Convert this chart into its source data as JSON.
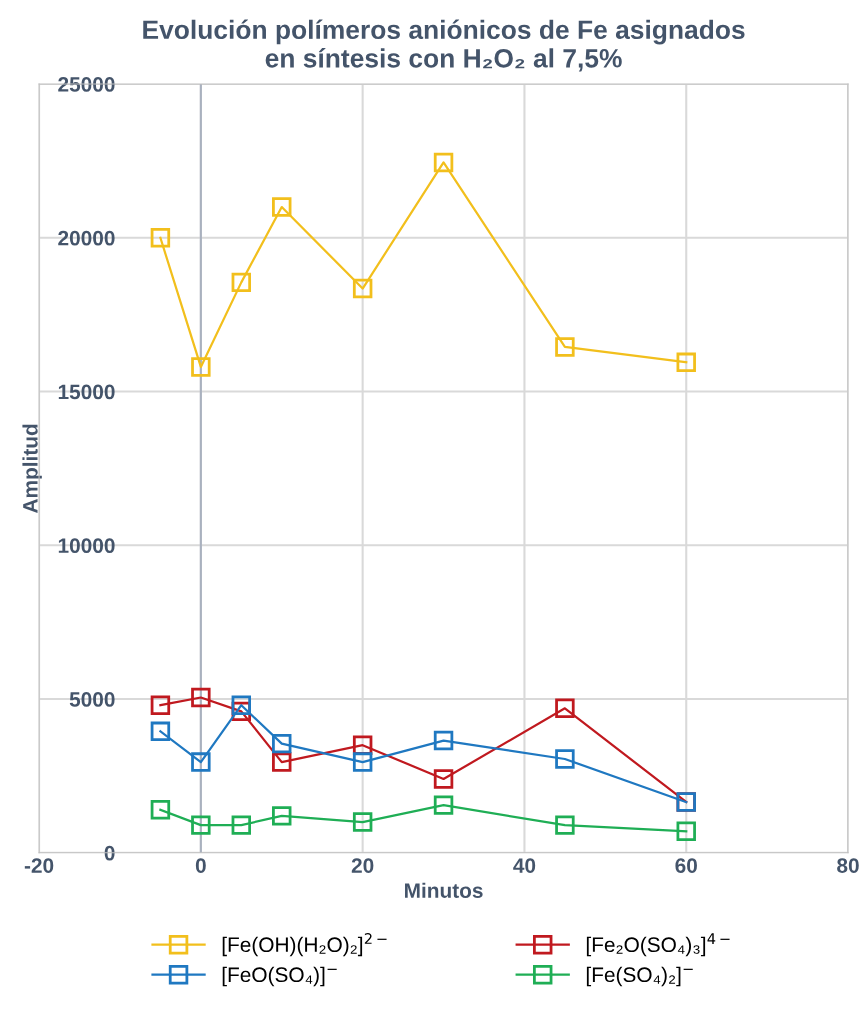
{
  "chart_data": {
    "type": "line",
    "title": "Evolución polímeros aniónicos de Fe asignados\nen síntesis con H₂O₂ al 7,5%",
    "xlabel": "Minutos",
    "ylabel": "Amplitud",
    "x": [
      -5,
      0,
      5,
      10,
      20,
      30,
      45,
      60
    ],
    "series": [
      {
        "name": "[Fe(OH)(H₂O)₂]$^{2−}$",
        "color": "#f2bf1c",
        "values": [
          20000,
          15800,
          18550,
          21000,
          18350,
          22450,
          16450,
          15950
        ]
      },
      {
        "name": "[FeO(SO₄)]$^{−}$",
        "color": "#1f78c1",
        "values": [
          3950,
          2950,
          4800,
          3550,
          2950,
          3650,
          3050,
          1650
        ]
      },
      {
        "name": "[Fe₂O(SO₄)₃]$^{4−}$",
        "color": "#c0191f",
        "values": [
          4800,
          5050,
          4600,
          2950,
          3500,
          2400,
          4700,
          1650
        ]
      },
      {
        "name": "[Fe(SO₄)₂]$^{−}$",
        "color": "#1fae55",
        "values": [
          1400,
          900,
          900,
          1200,
          1000,
          1550,
          900,
          700
        ]
      }
    ],
    "xlim": [
      -20,
      80
    ],
    "xticks": [
      -20,
      0,
      20,
      40,
      60,
      80
    ],
    "ylim": [
      0,
      25000
    ],
    "yticks": [
      0,
      5000,
      10000,
      15000,
      20000,
      25000
    ],
    "ref_lines": [
      {
        "axis": "x",
        "value": 0,
        "color": "#a9b1bf"
      }
    ],
    "grid": true,
    "legend": "bottom",
    "marker": "square",
    "line_style": "solid"
  }
}
